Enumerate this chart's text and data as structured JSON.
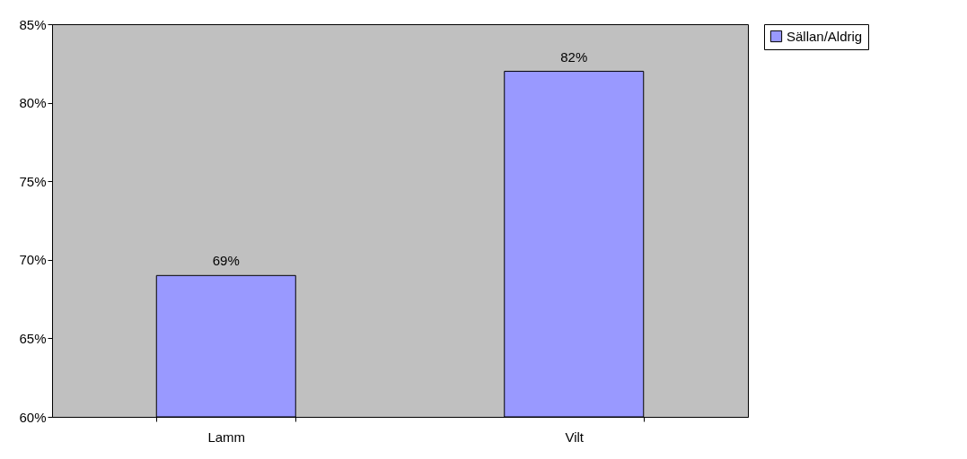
{
  "chart_data": {
    "type": "bar",
    "categories": [
      "Lamm",
      "Vilt"
    ],
    "series": [
      {
        "name": "Sällan/Aldrig",
        "color": "#9999ff",
        "values": [
          69,
          82
        ]
      }
    ],
    "value_labels": [
      "69%",
      "82%"
    ],
    "ylim": [
      60,
      85
    ],
    "yticks": [
      {
        "value": 60,
        "label": "60%"
      },
      {
        "value": 65,
        "label": "65%"
      },
      {
        "value": 70,
        "label": "70%"
      },
      {
        "value": 75,
        "label": "75%"
      },
      {
        "value": 80,
        "label": "80%"
      },
      {
        "value": 85,
        "label": "85%"
      }
    ],
    "grid": false,
    "legend": "right"
  }
}
